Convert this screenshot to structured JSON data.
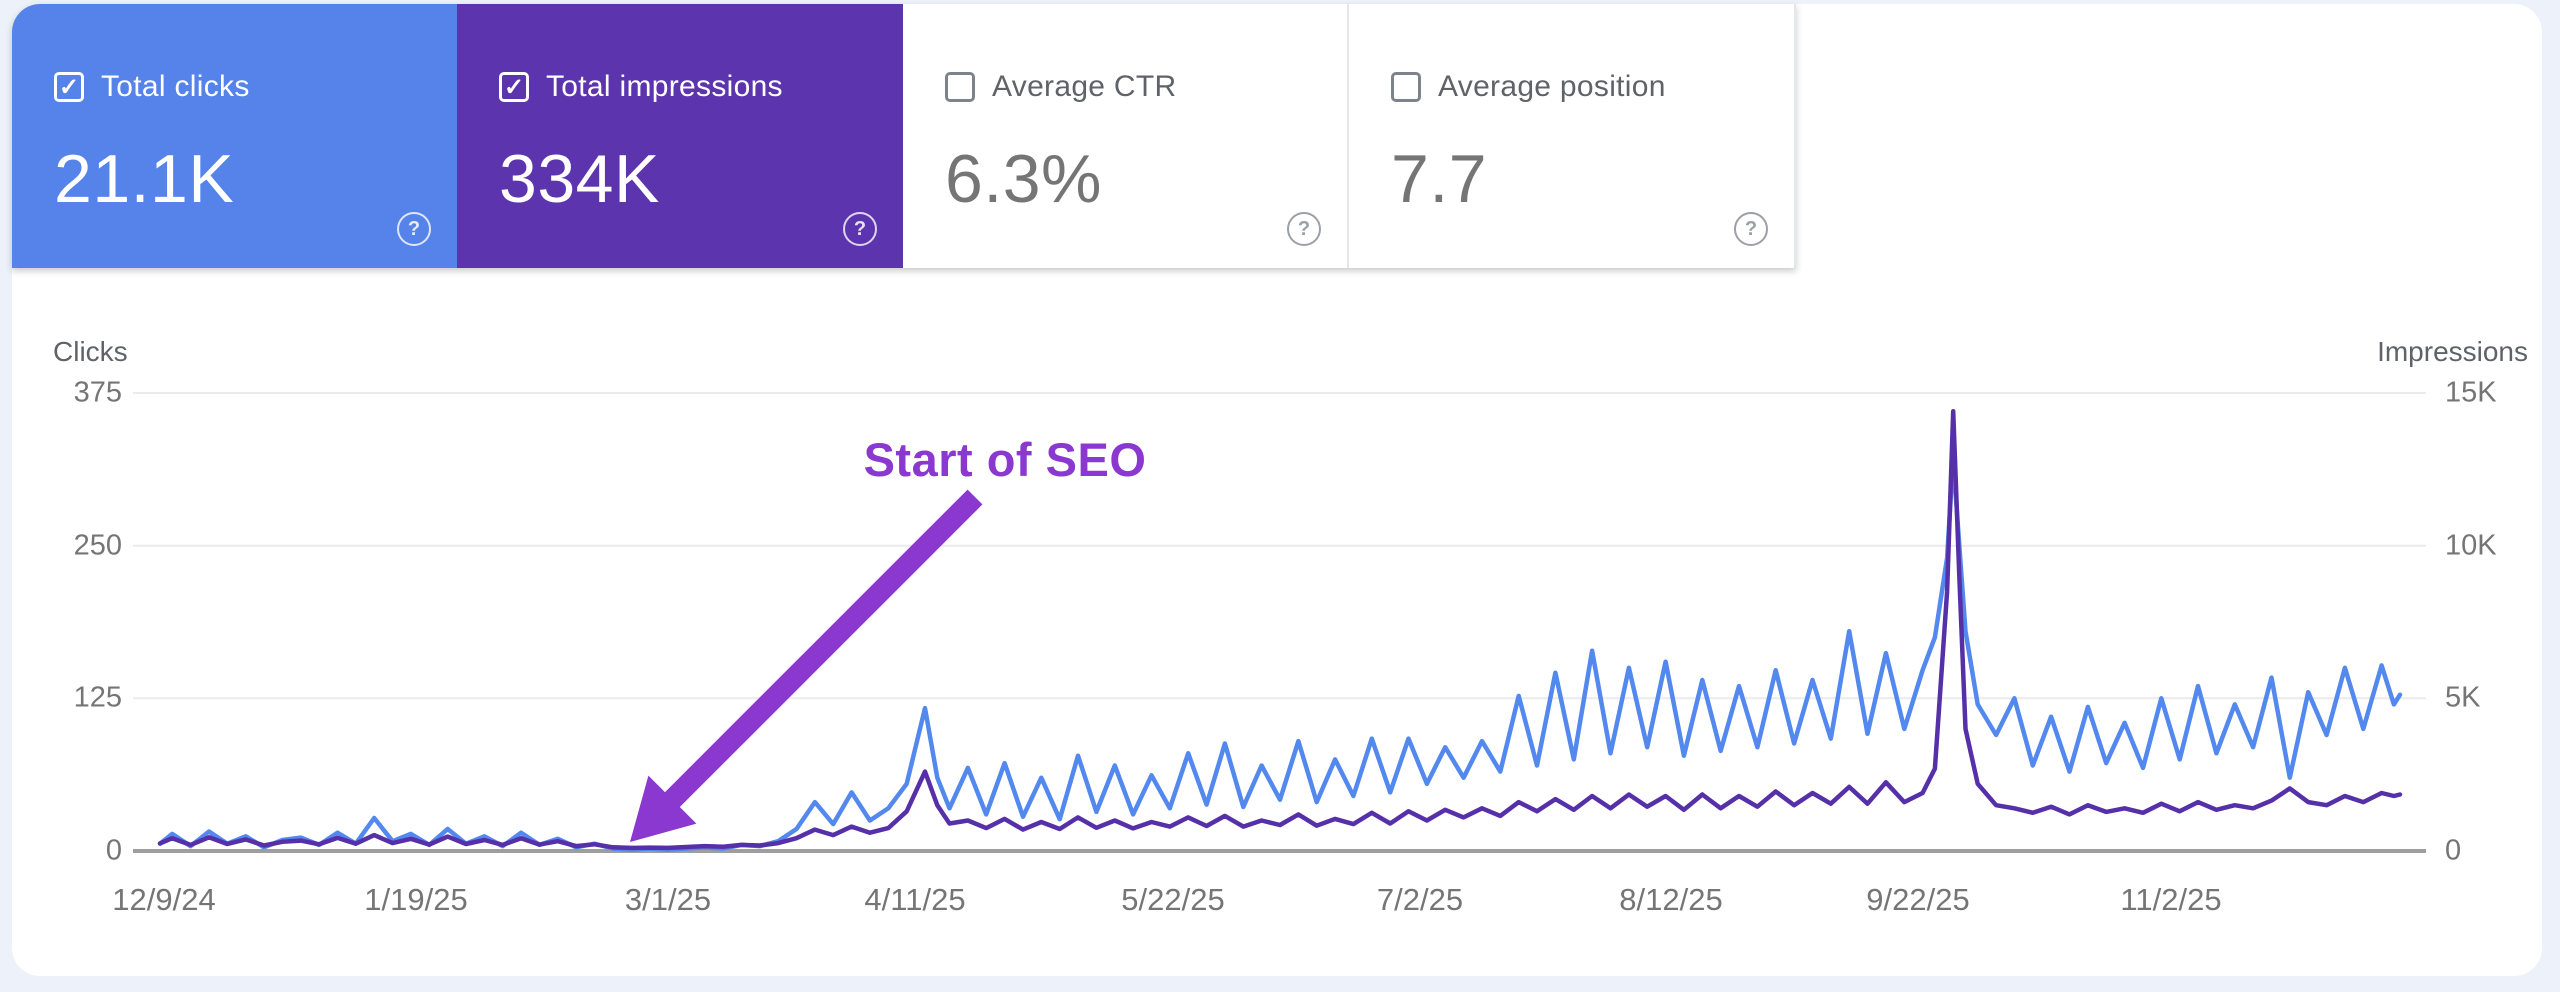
{
  "metrics": [
    {
      "label": "Total clicks",
      "value": "21.1K",
      "check": "✓"
    },
    {
      "label": "Total impressions",
      "value": "334K",
      "check": "✓"
    },
    {
      "label": "Average CTR",
      "value": "6.3%",
      "check": ""
    },
    {
      "label": "Average position",
      "value": "7.7",
      "check": ""
    }
  ],
  "ui": {
    "help_glyph": "?"
  },
  "annotation": {
    "text": "Start of SEO"
  },
  "colors": {
    "clicks_card": "#5583ea",
    "impressions_card": "#5c35ae",
    "clicks_line": "#5389ef",
    "impressions_line": "#5630a8",
    "annotation": "#8a38d0",
    "gridline": "#ebebeb",
    "axis_line": "#9e9e9e"
  },
  "chart_data": {
    "type": "line",
    "left_axis_label": "Clicks",
    "right_axis_label": "Impressions",
    "y_left_ticks": [
      "375",
      "250",
      "125",
      "0"
    ],
    "y_right_ticks": [
      "15K",
      "10K",
      "5K",
      "0"
    ],
    "y_left_max": 375,
    "y_right_max": 15000,
    "x_ticks": [
      "12/9/24",
      "1/19/25",
      "3/1/25",
      "4/11/25",
      "5/22/25",
      "7/2/25",
      "8/12/25",
      "9/22/25",
      "11/2/25"
    ],
    "start_date": "2024-12-09",
    "end_date": "2025-12-10",
    "grid": true,
    "legend_position": "none",
    "series_names": [
      "Clicks",
      "Impressions"
    ],
    "points": [
      [
        "2024-12-09",
        6,
        250
      ],
      [
        "2024-12-11",
        14,
        420
      ],
      [
        "2024-12-14",
        4,
        200
      ],
      [
        "2024-12-17",
        16,
        450
      ],
      [
        "2024-12-20",
        6,
        230
      ],
      [
        "2024-12-23",
        12,
        380
      ],
      [
        "2024-12-26",
        3,
        180
      ],
      [
        "2024-12-29",
        9,
        300
      ],
      [
        "2025-01-01",
        11,
        340
      ],
      [
        "2025-01-04",
        5,
        220
      ],
      [
        "2025-01-07",
        15,
        430
      ],
      [
        "2025-01-10",
        6,
        240
      ],
      [
        "2025-01-13",
        27,
        520
      ],
      [
        "2025-01-16",
        8,
        260
      ],
      [
        "2025-01-19",
        14,
        400
      ],
      [
        "2025-01-22",
        5,
        210
      ],
      [
        "2025-01-25",
        18,
        470
      ],
      [
        "2025-01-28",
        6,
        230
      ],
      [
        "2025-01-31",
        12,
        360
      ],
      [
        "2025-02-03",
        4,
        200
      ],
      [
        "2025-02-06",
        15,
        420
      ],
      [
        "2025-02-09",
        5,
        210
      ],
      [
        "2025-02-12",
        10,
        320
      ],
      [
        "2025-02-15",
        3,
        160
      ],
      [
        "2025-02-18",
        6,
        220
      ],
      [
        "2025-02-21",
        2,
        120
      ],
      [
        "2025-02-24",
        1,
        100
      ],
      [
        "2025-02-27",
        2,
        110
      ],
      [
        "2025-03-02",
        1,
        100
      ],
      [
        "2025-03-05",
        2,
        130
      ],
      [
        "2025-03-08",
        3,
        160
      ],
      [
        "2025-03-11",
        2,
        140
      ],
      [
        "2025-03-14",
        5,
        200
      ],
      [
        "2025-03-17",
        4,
        180
      ],
      [
        "2025-03-20",
        8,
        260
      ],
      [
        "2025-03-23",
        18,
        420
      ],
      [
        "2025-03-26",
        40,
        700
      ],
      [
        "2025-03-29",
        22,
        520
      ],
      [
        "2025-04-01",
        48,
        800
      ],
      [
        "2025-04-04",
        25,
        600
      ],
      [
        "2025-04-07",
        35,
        750
      ],
      [
        "2025-04-10",
        55,
        1300
      ],
      [
        "2025-04-13",
        117,
        2600
      ],
      [
        "2025-04-15",
        60,
        1500
      ],
      [
        "2025-04-17",
        35,
        900
      ],
      [
        "2025-04-20",
        68,
        1000
      ],
      [
        "2025-04-23",
        30,
        750
      ],
      [
        "2025-04-26",
        72,
        1050
      ],
      [
        "2025-04-29",
        28,
        700
      ],
      [
        "2025-05-02",
        60,
        950
      ],
      [
        "2025-05-05",
        26,
        720
      ],
      [
        "2025-05-08",
        78,
        1100
      ],
      [
        "2025-05-11",
        32,
        760
      ],
      [
        "2025-05-14",
        70,
        1000
      ],
      [
        "2025-05-17",
        30,
        740
      ],
      [
        "2025-05-20",
        62,
        950
      ],
      [
        "2025-05-23",
        35,
        800
      ],
      [
        "2025-05-26",
        80,
        1100
      ],
      [
        "2025-05-29",
        38,
        820
      ],
      [
        "2025-06-01",
        88,
        1150
      ],
      [
        "2025-06-04",
        36,
        800
      ],
      [
        "2025-06-07",
        70,
        1000
      ],
      [
        "2025-06-10",
        42,
        850
      ],
      [
        "2025-06-13",
        90,
        1200
      ],
      [
        "2025-06-16",
        40,
        830
      ],
      [
        "2025-06-19",
        75,
        1050
      ],
      [
        "2025-06-22",
        45,
        880
      ],
      [
        "2025-06-25",
        92,
        1250
      ],
      [
        "2025-06-28",
        48,
        900
      ],
      [
        "2025-07-01",
        92,
        1300
      ],
      [
        "2025-07-04",
        55,
        1000
      ],
      [
        "2025-07-07",
        85,
        1350
      ],
      [
        "2025-07-10",
        60,
        1100
      ],
      [
        "2025-07-13",
        90,
        1400
      ],
      [
        "2025-07-16",
        65,
        1150
      ],
      [
        "2025-07-19",
        127,
        1600
      ],
      [
        "2025-07-22",
        70,
        1300
      ],
      [
        "2025-07-25",
        146,
        1700
      ],
      [
        "2025-07-28",
        75,
        1350
      ],
      [
        "2025-07-31",
        164,
        1800
      ],
      [
        "2025-08-03",
        80,
        1400
      ],
      [
        "2025-08-06",
        150,
        1850
      ],
      [
        "2025-08-09",
        85,
        1450
      ],
      [
        "2025-08-12",
        155,
        1800
      ],
      [
        "2025-08-15",
        78,
        1350
      ],
      [
        "2025-08-18",
        140,
        1850
      ],
      [
        "2025-08-21",
        82,
        1400
      ],
      [
        "2025-08-24",
        135,
        1800
      ],
      [
        "2025-08-27",
        85,
        1450
      ],
      [
        "2025-08-30",
        148,
        1950
      ],
      [
        "2025-09-02",
        88,
        1500
      ],
      [
        "2025-09-05",
        140,
        1900
      ],
      [
        "2025-09-08",
        92,
        1550
      ],
      [
        "2025-09-11",
        180,
        2100
      ],
      [
        "2025-09-14",
        96,
        1550
      ],
      [
        "2025-09-17",
        162,
        2250
      ],
      [
        "2025-09-20",
        100,
        1600
      ],
      [
        "2025-09-23",
        148,
        1900
      ],
      [
        "2025-09-25",
        175,
        2700
      ],
      [
        "2025-09-27",
        240,
        8500
      ],
      [
        "2025-09-28",
        322,
        14400
      ],
      [
        "2025-09-29",
        250,
        9000
      ],
      [
        "2025-09-30",
        180,
        4000
      ],
      [
        "2025-10-02",
        120,
        2200
      ],
      [
        "2025-10-05",
        95,
        1500
      ],
      [
        "2025-10-08",
        125,
        1400
      ],
      [
        "2025-10-11",
        70,
        1250
      ],
      [
        "2025-10-14",
        110,
        1450
      ],
      [
        "2025-10-17",
        65,
        1200
      ],
      [
        "2025-10-20",
        118,
        1500
      ],
      [
        "2025-10-23",
        72,
        1280
      ],
      [
        "2025-10-26",
        105,
        1400
      ],
      [
        "2025-10-29",
        68,
        1250
      ],
      [
        "2025-11-01",
        125,
        1550
      ],
      [
        "2025-11-04",
        75,
        1300
      ],
      [
        "2025-11-07",
        135,
        1600
      ],
      [
        "2025-11-10",
        80,
        1350
      ],
      [
        "2025-11-13",
        120,
        1500
      ],
      [
        "2025-11-16",
        85,
        1400
      ],
      [
        "2025-11-19",
        142,
        1650
      ],
      [
        "2025-11-22",
        60,
        2050
      ],
      [
        "2025-11-25",
        130,
        1600
      ],
      [
        "2025-11-28",
        95,
        1500
      ],
      [
        "2025-12-01",
        150,
        1800
      ],
      [
        "2025-12-04",
        100,
        1600
      ],
      [
        "2025-12-07",
        152,
        1900
      ],
      [
        "2025-12-09",
        120,
        1800
      ],
      [
        "2025-12-10",
        128,
        1850
      ]
    ]
  }
}
